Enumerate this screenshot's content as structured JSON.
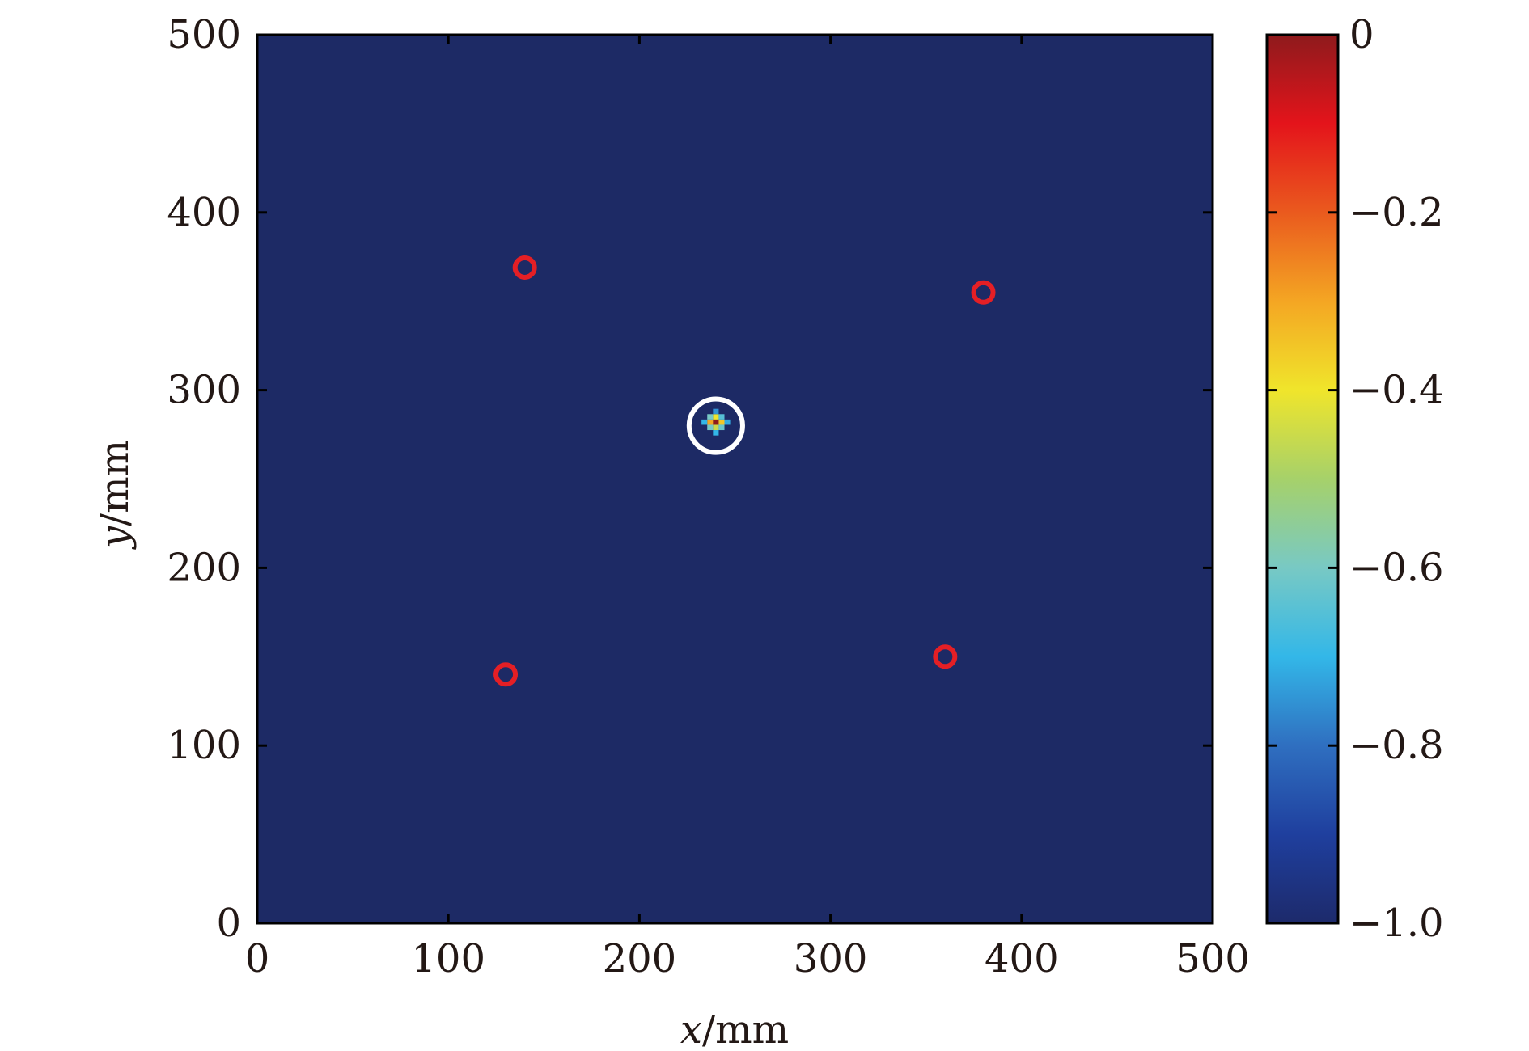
{
  "chart_data": {
    "type": "heatmap",
    "xlabel": {
      "var": "x",
      "unit": "/mm"
    },
    "ylabel": {
      "var": "y",
      "unit": "/mm"
    },
    "xlim": [
      0,
      500
    ],
    "ylim": [
      0,
      500
    ],
    "x_ticks": [
      0,
      100,
      200,
      300,
      400,
      500
    ],
    "y_ticks": [
      0,
      100,
      200,
      300,
      400,
      500
    ],
    "x_tick_labels": [
      "0",
      "100",
      "200",
      "300",
      "400",
      "500"
    ],
    "y_tick_labels": [
      "0",
      "100",
      "200",
      "300",
      "400",
      "500"
    ],
    "background_value": -1.0,
    "hotspot": {
      "center": [
        240,
        282
      ],
      "cells": [
        {
          "x": 240,
          "y": 282,
          "value": 0.0
        },
        {
          "x": 237,
          "y": 282,
          "value": -0.3
        },
        {
          "x": 243,
          "y": 282,
          "value": -0.35
        },
        {
          "x": 240,
          "y": 285,
          "value": -0.4
        },
        {
          "x": 240,
          "y": 279,
          "value": -0.45
        },
        {
          "x": 237,
          "y": 285,
          "value": -0.6
        },
        {
          "x": 243,
          "y": 285,
          "value": -0.65
        },
        {
          "x": 237,
          "y": 279,
          "value": -0.6
        },
        {
          "x": 243,
          "y": 279,
          "value": -0.62
        },
        {
          "x": 234,
          "y": 282,
          "value": -0.7
        },
        {
          "x": 246,
          "y": 282,
          "value": -0.72
        },
        {
          "x": 240,
          "y": 276,
          "value": -0.7
        },
        {
          "x": 240,
          "y": 288,
          "value": -0.75
        }
      ]
    },
    "highlight_circle": {
      "center": [
        240,
        280
      ],
      "radius": 14,
      "color": "#ffffff"
    },
    "markers": [
      {
        "x": 140,
        "y": 369
      },
      {
        "x": 380,
        "y": 355
      },
      {
        "x": 130,
        "y": 140
      },
      {
        "x": 360,
        "y": 150
      }
    ],
    "marker_color": "#e41f25",
    "colorbar": {
      "range": [
        -1.0,
        0
      ],
      "ticks": [
        0,
        -0.2,
        -0.4,
        -0.6,
        -0.8,
        -1.0
      ],
      "tick_labels": [
        "0",
        "−0.2",
        "−0.4",
        "−0.6",
        "−0.8",
        "−1.0"
      ],
      "colormap": [
        "#1d2a6b",
        "#1f3f9e",
        "#2f6fc0",
        "#33b7e8",
        "#78c9c4",
        "#a6d16a",
        "#f0e52b",
        "#f4a623",
        "#ea5a1e",
        "#e4141b",
        "#8e1a1c"
      ]
    },
    "grid": false
  }
}
